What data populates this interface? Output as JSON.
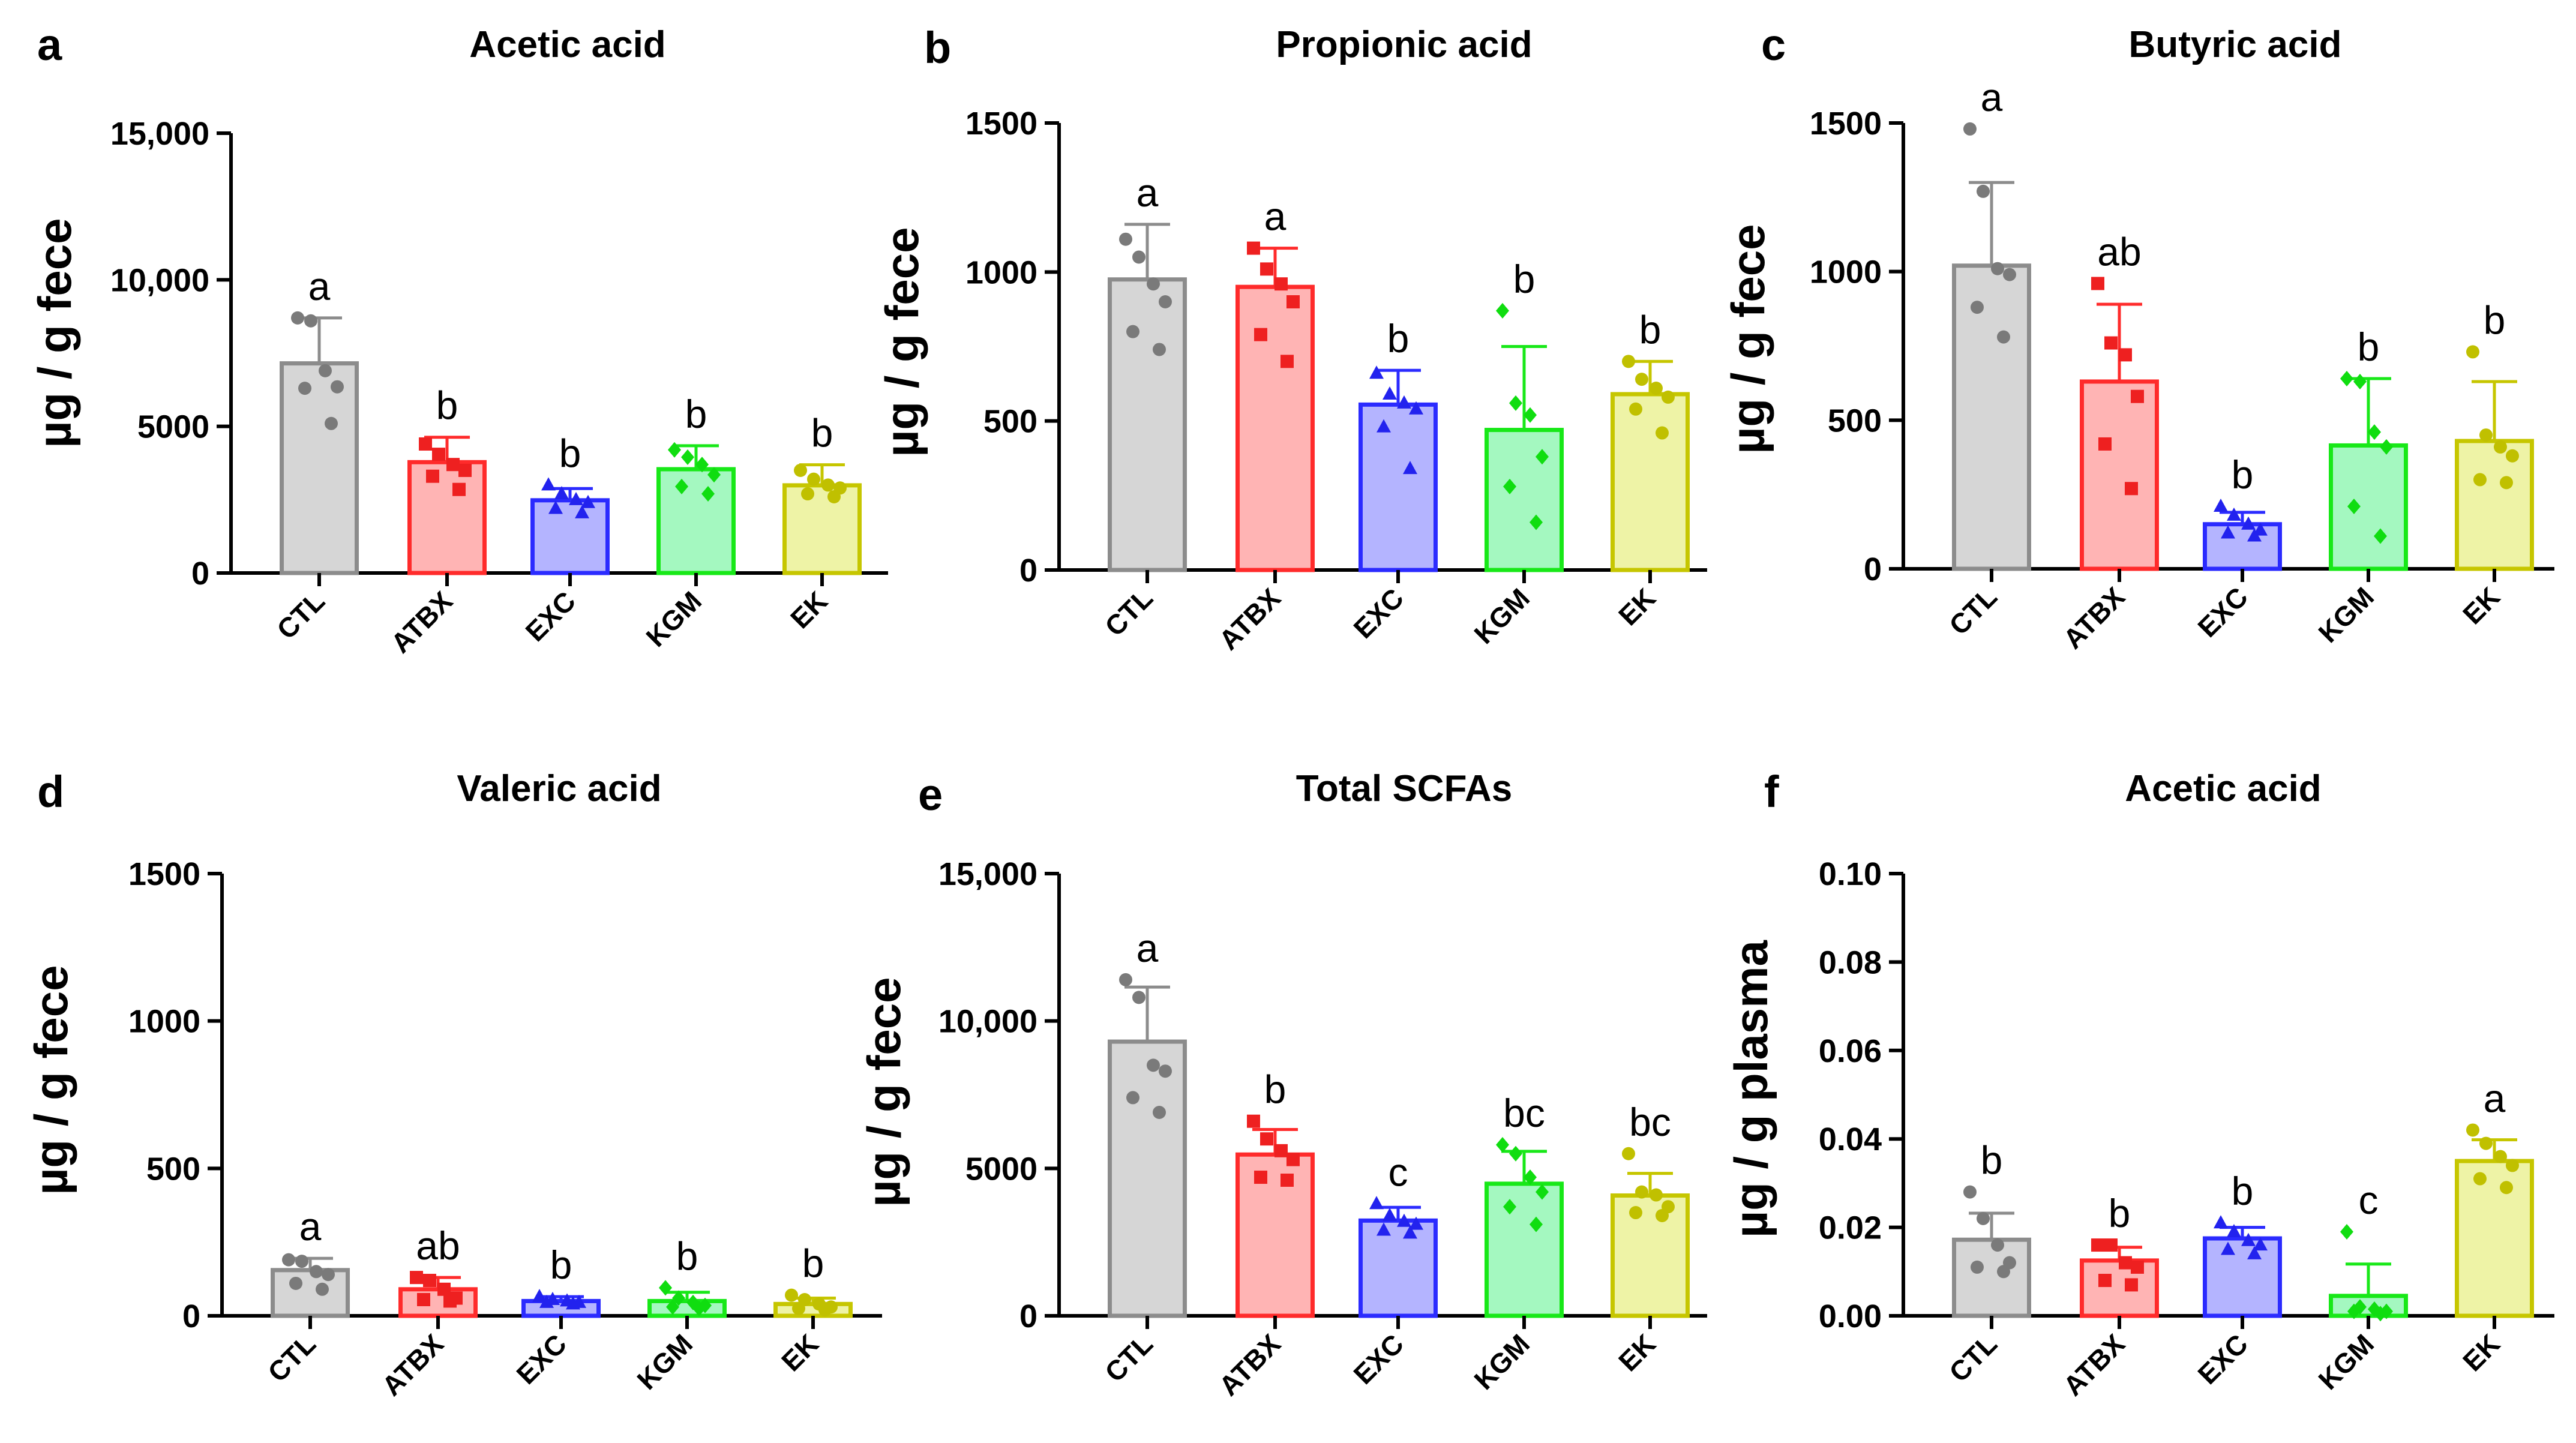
{
  "colors": {
    "CTL": {
      "stroke": "#8c8c8c",
      "fill": "#d6d6d6",
      "dot": "#7a7a7a"
    },
    "ATBX": {
      "stroke": "#ff2b2b",
      "fill": "#ffb4b4",
      "dot": "#ee2020"
    },
    "EXC": {
      "stroke": "#2b2bff",
      "fill": "#b4b4ff",
      "dot": "#2222ee"
    },
    "KGM": {
      "stroke": "#18e818",
      "fill": "#a4f8c0",
      "dot": "#10dd10"
    },
    "EK": {
      "stroke": "#c6c600",
      "fill": "#eef3a6",
      "dot": "#c0c000"
    }
  },
  "chart_data": [
    {
      "type": "bar",
      "letter": "a",
      "title": "Acetic acid",
      "ylabel": "µg / g fece",
      "categories": [
        "CTL",
        "ATBX",
        "EXC",
        "KGM",
        "EK"
      ],
      "values": [
        7150,
        3780,
        2480,
        3540,
        2990
      ],
      "errors": [
        1550,
        850,
        400,
        800,
        700
      ],
      "letters": [
        "a",
        "b",
        "b",
        "b",
        "b"
      ],
      "points": [
        [
          8700,
          8600,
          6900,
          6350,
          6300,
          5100
        ],
        [
          4400,
          4050,
          3700,
          3500,
          3300,
          2850
        ],
        [
          3000,
          2700,
          2500,
          2400,
          2200,
          2050
        ],
        [
          4200,
          3950,
          3700,
          3350,
          2950,
          2700
        ],
        [
          3500,
          3200,
          3000,
          2900,
          2700,
          2600
        ]
      ],
      "marker": [
        "circle",
        "square",
        "triangle",
        "diamond",
        "circle"
      ],
      "ylim": [
        0,
        15000
      ],
      "ticks": [
        0,
        5000,
        10000,
        15000
      ],
      "tick_labels": [
        "0",
        "5000",
        "10,000",
        "15,000"
      ]
    },
    {
      "type": "bar",
      "letter": "b",
      "title": "Propionic acid",
      "ylabel": "µg / g  fece",
      "categories": [
        "CTL",
        "ATBX",
        "EXC",
        "KGM",
        "EK"
      ],
      "values": [
        975,
        950,
        555,
        470,
        590
      ],
      "errors": [
        185,
        130,
        115,
        280,
        110
      ],
      "letters": [
        "a",
        "a",
        "b",
        "b",
        "b"
      ],
      "points": [
        [
          1110,
          1050,
          960,
          900,
          800,
          740
        ],
        [
          1080,
          1010,
          960,
          900,
          790,
          700
        ],
        [
          660,
          590,
          560,
          540,
          480,
          340
        ],
        [
          870,
          560,
          520,
          380,
          280,
          160
        ],
        [
          700,
          640,
          610,
          580,
          540,
          460
        ]
      ],
      "marker": [
        "circle",
        "square",
        "triangle",
        "diamond",
        "circle"
      ],
      "ylim": [
        0,
        1500
      ],
      "ticks": [
        0,
        500,
        1000,
        1500
      ],
      "tick_labels": [
        "0",
        "500",
        "1000",
        "1500"
      ]
    },
    {
      "type": "bar",
      "letter": "c",
      "title": "Butyric acid",
      "ylabel": "µg / g  fece",
      "categories": [
        "CTL",
        "ATBX",
        "EXC",
        "KGM",
        "EK"
      ],
      "values": [
        1020,
        630,
        150,
        415,
        430
      ],
      "errors": [
        280,
        260,
        40,
        225,
        200
      ],
      "letters": [
        "a",
        "ab",
        "b",
        "b",
        "b"
      ],
      "points": [
        [
          1480,
          1270,
          1010,
          990,
          880,
          780
        ],
        [
          960,
          760,
          720,
          580,
          420,
          270
        ],
        [
          210,
          180,
          150,
          130,
          120,
          110
        ],
        [
          640,
          630,
          460,
          410,
          210,
          110
        ],
        [
          730,
          450,
          410,
          380,
          300,
          290
        ]
      ],
      "marker": [
        "circle",
        "square",
        "triangle",
        "diamond",
        "circle"
      ],
      "ylim": [
        0,
        1500
      ],
      "ticks": [
        0,
        500,
        1000,
        1500
      ],
      "tick_labels": [
        "0",
        "500",
        "1000",
        "1500"
      ]
    },
    {
      "type": "bar",
      "letter": "d",
      "title": "Valeric acid",
      "ylabel": "µg / g fece",
      "categories": [
        "CTL",
        "ATBX",
        "EXC",
        "KGM",
        "EK"
      ],
      "values": [
        155,
        90,
        50,
        50,
        40
      ],
      "errors": [
        40,
        40,
        15,
        30,
        20
      ],
      "letters": [
        "a",
        "ab",
        "b",
        "b",
        "b"
      ],
      "points": [
        [
          190,
          185,
          150,
          140,
          110,
          90
        ],
        [
          130,
          120,
          90,
          60,
          55,
          50
        ],
        [
          65,
          55,
          50,
          45,
          45,
          40
        ],
        [
          95,
          60,
          45,
          35,
          30,
          25
        ],
        [
          70,
          55,
          40,
          30,
          25,
          20
        ]
      ],
      "marker": [
        "circle",
        "square",
        "triangle",
        "diamond",
        "circle"
      ],
      "ylim": [
        0,
        1500
      ],
      "ticks": [
        0,
        500,
        1000,
        1500
      ],
      "tick_labels": [
        "0",
        "500",
        "1000",
        "1500"
      ]
    },
    {
      "type": "bar",
      "letter": "e",
      "title": "Total SCFAs",
      "ylabel": "µg / g  fece",
      "categories": [
        "CTL",
        "ATBX",
        "EXC",
        "KGM",
        "EK"
      ],
      "values": [
        9300,
        5470,
        3230,
        4480,
        4080
      ],
      "errors": [
        1850,
        850,
        450,
        1100,
        750
      ],
      "letters": [
        "a",
        "b",
        "c",
        "bc",
        "bc"
      ],
      "points": [
        [
          11400,
          10800,
          8500,
          8300,
          7400,
          6900
        ],
        [
          6600,
          6000,
          5600,
          5300,
          4700,
          4600
        ],
        [
          3800,
          3400,
          3200,
          3100,
          2900,
          2800
        ],
        [
          5800,
          5500,
          4700,
          4200,
          3700,
          3100
        ],
        [
          5500,
          4200,
          4100,
          3700,
          3500,
          3400
        ]
      ],
      "marker": [
        "circle",
        "square",
        "triangle",
        "diamond",
        "circle"
      ],
      "ylim": [
        0,
        15000
      ],
      "ticks": [
        0,
        5000,
        10000,
        15000
      ],
      "tick_labels": [
        "0",
        "5000",
        "10,000",
        "15,000"
      ]
    },
    {
      "type": "bar",
      "letter": "f",
      "title": "Acetic acid",
      "ylabel": "µg / g  plasma",
      "categories": [
        "CTL",
        "ATBX",
        "EXC",
        "KGM",
        "EK"
      ],
      "values": [
        0.0172,
        0.0125,
        0.0175,
        0.0045,
        0.035
      ],
      "errors": [
        0.006,
        0.003,
        0.0025,
        0.0072,
        0.0048
      ],
      "letters": [
        "b",
        "b",
        "b",
        "c",
        "a"
      ],
      "points": [
        [
          0.028,
          0.022,
          0.016,
          0.012,
          0.011,
          0.01
        ],
        [
          0.016,
          0.016,
          0.012,
          0.011,
          0.008,
          0.007
        ],
        [
          0.021,
          0.019,
          0.017,
          0.016,
          0.015,
          0.014
        ],
        [
          0.019,
          0.002,
          0.0015,
          0.001,
          0.001,
          0.0005
        ],
        [
          0.042,
          0.039,
          0.036,
          0.034,
          0.031,
          0.029
        ]
      ],
      "marker": [
        "circle",
        "square",
        "triangle",
        "diamond",
        "circle"
      ],
      "ylim": [
        0,
        0.1
      ],
      "ticks": [
        0,
        0.02,
        0.04,
        0.06,
        0.08,
        0.1
      ],
      "tick_labels": [
        "0.00",
        "0.02",
        "0.04",
        "0.06",
        "0.08",
        "0.10"
      ]
    }
  ]
}
